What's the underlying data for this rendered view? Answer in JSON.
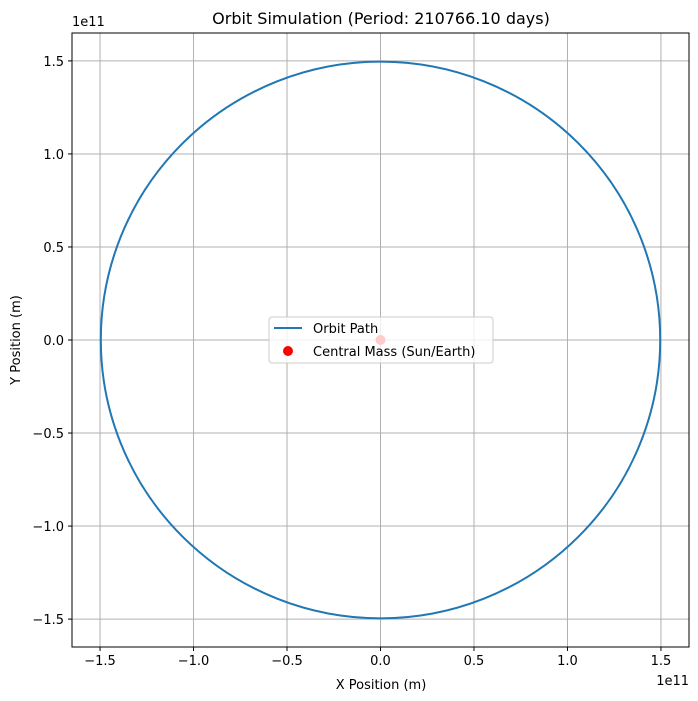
{
  "chart_data": {
    "type": "line",
    "title": "Orbit Simulation (Period: 210766.10 days)",
    "xlabel": "X Position (m)",
    "ylabel": "Y Position (m)",
    "x_offset_label": "1e11",
    "y_offset_label": "1e11",
    "xlim": [
      -1.65,
      1.65
    ],
    "ylim": [
      -1.65,
      1.65
    ],
    "xticks": [
      -1.5,
      -1.0,
      -0.5,
      0.0,
      0.5,
      1.0,
      1.5
    ],
    "yticks": [
      -1.5,
      -1.0,
      -0.5,
      0.0,
      0.5,
      1.0,
      1.5
    ],
    "xtick_labels": [
      "−1.5",
      "−1.0",
      "−0.5",
      "0.0",
      "0.5",
      "1.0",
      "1.5"
    ],
    "ytick_labels": [
      "−1.5",
      "−1.0",
      "−0.5",
      "0.0",
      "0.5",
      "1.0",
      "1.5"
    ],
    "grid": true,
    "legend_position": "center",
    "series": [
      {
        "name": "Orbit Path",
        "kind": "line",
        "color": "#1f77b4",
        "center": [
          0,
          0
        ],
        "radius": 1.496
      },
      {
        "name": "Central Mass (Sun/Earth)",
        "kind": "scatter",
        "color": "#ff0000",
        "points": [
          [
            0,
            0
          ]
        ]
      }
    ]
  }
}
